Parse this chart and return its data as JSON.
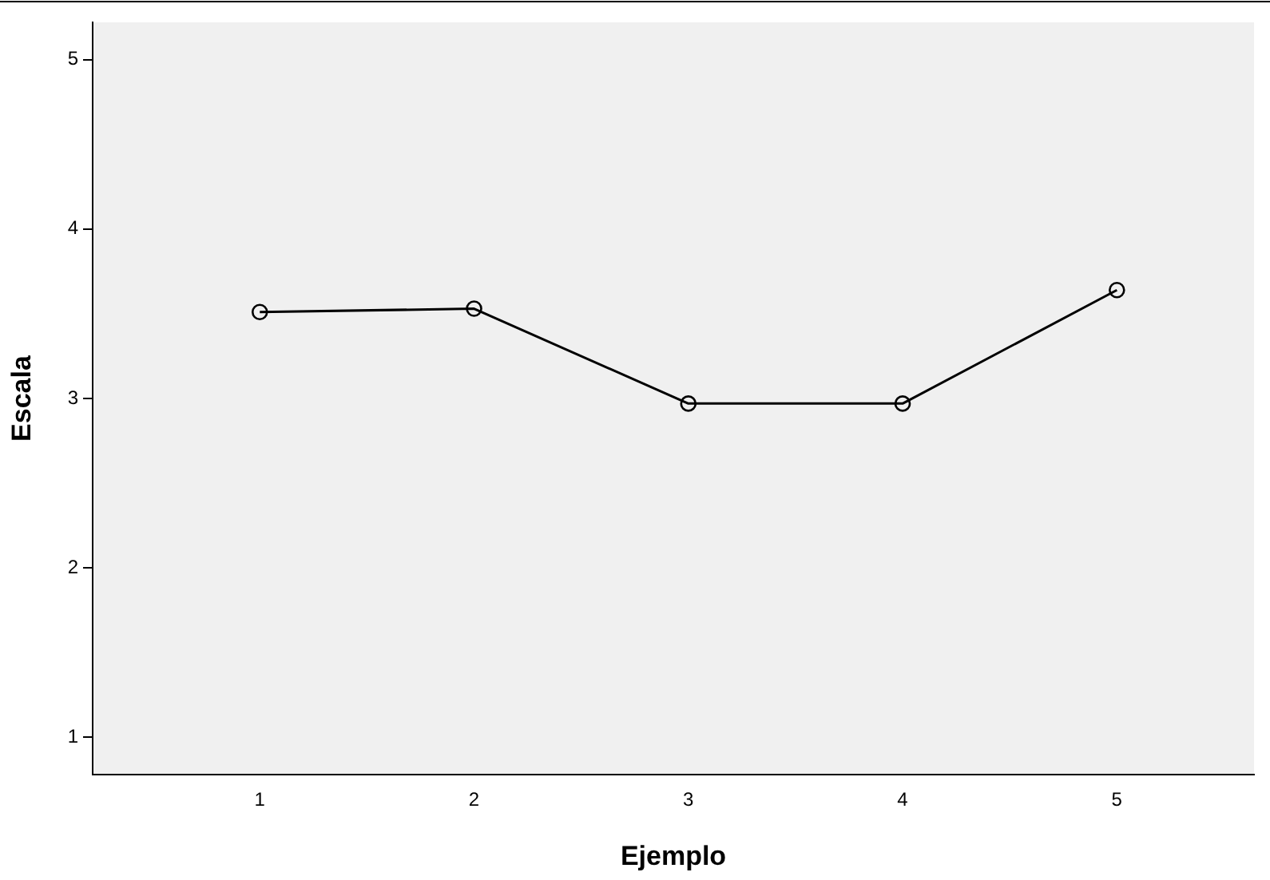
{
  "chart_data": {
    "type": "line",
    "xlabel": "Ejemplo",
    "ylabel": "Escala",
    "x": [
      1,
      2,
      3,
      4,
      5
    ],
    "series": [
      {
        "color": "#000000",
        "values": [
          3.51,
          3.53,
          2.97,
          2.97,
          3.64
        ]
      }
    ],
    "xlim": [
      0.22,
      5.64
    ],
    "xticks": [
      1,
      2,
      3,
      4,
      5
    ],
    "ylim": [
      0.78,
      5.22
    ],
    "yticks": [
      1,
      2,
      3,
      4,
      5
    ],
    "grid": false,
    "legend": false,
    "marker": "circle",
    "line_style": "solid"
  }
}
